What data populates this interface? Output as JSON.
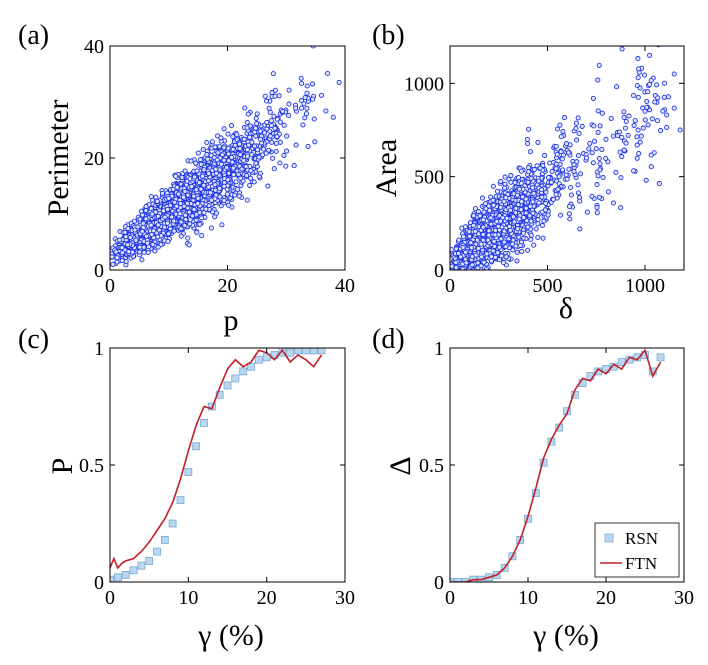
{
  "chart_data": [
    {
      "type": "scatter",
      "panel_label": "(a)",
      "xlabel": "p",
      "ylabel": "Perimeter",
      "xlim": [
        0,
        40
      ],
      "ylim": [
        0,
        40
      ],
      "xticks": [
        {
          "value": 0,
          "label": "0"
        },
        {
          "value": 20,
          "label": "20"
        },
        {
          "value": 40,
          "label": "40"
        }
      ],
      "yticks": [
        {
          "value": 0,
          "label": "0"
        },
        {
          "value": 20,
          "label": "20"
        },
        {
          "value": 40,
          "label": "40"
        }
      ],
      "marker_color": "#1f35e6",
      "series": [
        {
          "name": "points",
          "x": [
            0.5,
            1.2,
            2.1,
            3.0,
            4.4,
            5.5,
            7.0,
            8.2,
            9.8,
            11.0,
            12.5,
            13.9,
            15.2,
            16.8,
            18.0,
            19.4,
            20.7,
            22.1,
            23.6,
            24.8,
            26.3,
            27.5,
            29.0,
            30.4,
            31.6,
            33.0,
            34.5,
            36.0,
            34.6,
            39.0
          ],
          "y": [
            1.0,
            2.2,
            3.1,
            4.5,
            5.3,
            6.9,
            8.0,
            9.6,
            10.8,
            12.1,
            13.0,
            14.9,
            15.6,
            17.2,
            18.0,
            19.6,
            20.1,
            21.7,
            22.3,
            23.9,
            24.5,
            25.8,
            26.4,
            27.6,
            28.9,
            29.7,
            30.5,
            31.2,
            40.0,
            33.5
          ]
        }
      ]
    },
    {
      "type": "scatter",
      "panel_label": "(b)",
      "xlabel": "δ",
      "ylabel": "Area",
      "xlim": [
        0,
        1200
      ],
      "ylim": [
        0,
        1200
      ],
      "xticks": [
        {
          "value": 0,
          "label": "0"
        },
        {
          "value": 500,
          "label": "500"
        },
        {
          "value": 1000,
          "label": "1000"
        }
      ],
      "yticks": [
        {
          "value": 0,
          "label": "0"
        },
        {
          "value": 500,
          "label": "500"
        },
        {
          "value": 1000,
          "label": "1000"
        }
      ],
      "marker_color": "#1f35e6",
      "series": [
        {
          "name": "points",
          "x": [
            10,
            30,
            55,
            80,
            110,
            140,
            170,
            200,
            240,
            270,
            310,
            350,
            390,
            430,
            470,
            520,
            560,
            610,
            650,
            700,
            750,
            800,
            860,
            900,
            950,
            1000,
            1050,
            1100,
            1150,
            1180
          ],
          "y": [
            20,
            40,
            70,
            95,
            120,
            160,
            190,
            210,
            260,
            280,
            320,
            350,
            380,
            410,
            430,
            470,
            500,
            540,
            580,
            600,
            650,
            700,
            720,
            760,
            800,
            850,
            900,
            1000,
            1050,
            750
          ]
        }
      ]
    },
    {
      "type": "line",
      "panel_label": "(c)",
      "xlabel": "γ (%)",
      "ylabel": "P",
      "xlim": [
        0,
        30
      ],
      "ylim": [
        0,
        1
      ],
      "xticks": [
        {
          "value": 0,
          "label": "0"
        },
        {
          "value": 10,
          "label": "10"
        },
        {
          "value": 20,
          "label": "20"
        },
        {
          "value": 30,
          "label": "30"
        }
      ],
      "yticks": [
        {
          "value": 0,
          "label": "0"
        },
        {
          "value": 0.5,
          "label": "0.5"
        },
        {
          "value": 1,
          "label": "1"
        }
      ],
      "series": [
        {
          "name": "RSN",
          "style": "markers",
          "color": "#6fa8dc",
          "x": [
            0,
            1,
            2,
            3,
            4,
            5,
            6,
            7,
            8,
            9,
            10,
            11,
            12,
            13,
            14,
            15,
            16,
            17,
            18,
            19,
            20,
            21,
            22,
            23,
            24,
            25,
            26,
            27
          ],
          "y": [
            0.01,
            0.02,
            0.03,
            0.05,
            0.07,
            0.09,
            0.13,
            0.18,
            0.25,
            0.35,
            0.47,
            0.58,
            0.68,
            0.75,
            0.8,
            0.84,
            0.87,
            0.9,
            0.92,
            0.95,
            0.96,
            0.97,
            0.98,
            0.98,
            0.99,
            0.99,
            0.99,
            0.99
          ]
        },
        {
          "name": "FTN",
          "style": "line",
          "color": "#c0202a",
          "x": [
            0,
            0.5,
            1,
            1.5,
            2,
            3,
            4,
            5,
            6,
            7,
            8,
            9,
            10,
            11,
            12,
            13,
            14,
            15,
            16,
            17,
            18,
            19,
            20,
            21,
            22,
            23,
            24,
            25,
            26,
            27
          ],
          "y": [
            0.06,
            0.1,
            0.06,
            0.08,
            0.09,
            0.1,
            0.13,
            0.17,
            0.22,
            0.27,
            0.34,
            0.44,
            0.56,
            0.67,
            0.75,
            0.74,
            0.83,
            0.91,
            0.95,
            0.92,
            0.94,
            0.99,
            0.98,
            0.95,
            0.99,
            0.94,
            0.97,
            0.95,
            0.92,
            0.97
          ]
        }
      ]
    },
    {
      "type": "line",
      "panel_label": "(d)",
      "xlabel": "γ (%)",
      "ylabel": "Δ",
      "xlim": [
        0,
        30
      ],
      "ylim": [
        0,
        1
      ],
      "xticks": [
        {
          "value": 0,
          "label": "0"
        },
        {
          "value": 10,
          "label": "10"
        },
        {
          "value": 20,
          "label": "20"
        },
        {
          "value": 30,
          "label": "30"
        }
      ],
      "yticks": [
        {
          "value": 0,
          "label": "0"
        },
        {
          "value": 0.5,
          "label": "0.5"
        },
        {
          "value": 1,
          "label": "1"
        }
      ],
      "legend": {
        "placement": "bottom-right",
        "entries": [
          "RSN",
          "FTN"
        ]
      },
      "series": [
        {
          "name": "RSN",
          "style": "markers",
          "color": "#6fa8dc",
          "x": [
            0,
            1,
            2,
            3,
            4,
            5,
            6,
            7,
            8,
            9,
            10,
            11,
            12,
            13,
            14,
            15,
            16,
            17,
            18,
            19,
            20,
            21,
            22,
            23,
            24,
            25,
            26,
            27
          ],
          "y": [
            0.0,
            0.0,
            0.0,
            0.01,
            0.01,
            0.02,
            0.03,
            0.06,
            0.11,
            0.18,
            0.27,
            0.38,
            0.51,
            0.6,
            0.66,
            0.73,
            0.8,
            0.85,
            0.88,
            0.9,
            0.91,
            0.92,
            0.94,
            0.95,
            0.96,
            0.97,
            0.9,
            0.96
          ]
        },
        {
          "name": "FTN",
          "style": "line",
          "color": "#c0202a",
          "x": [
            0,
            1,
            2,
            3,
            4,
            5,
            6,
            7,
            8,
            9,
            10,
            11,
            12,
            13,
            14,
            15,
            16,
            17,
            18,
            19,
            20,
            21,
            22,
            23,
            24,
            25,
            26,
            27
          ],
          "y": [
            0.0,
            0.0,
            0.0,
            0.01,
            0.01,
            0.02,
            0.03,
            0.06,
            0.11,
            0.18,
            0.28,
            0.4,
            0.53,
            0.61,
            0.67,
            0.72,
            0.82,
            0.87,
            0.86,
            0.91,
            0.89,
            0.93,
            0.91,
            0.96,
            0.95,
            0.99,
            0.88,
            0.94
          ]
        }
      ]
    }
  ]
}
